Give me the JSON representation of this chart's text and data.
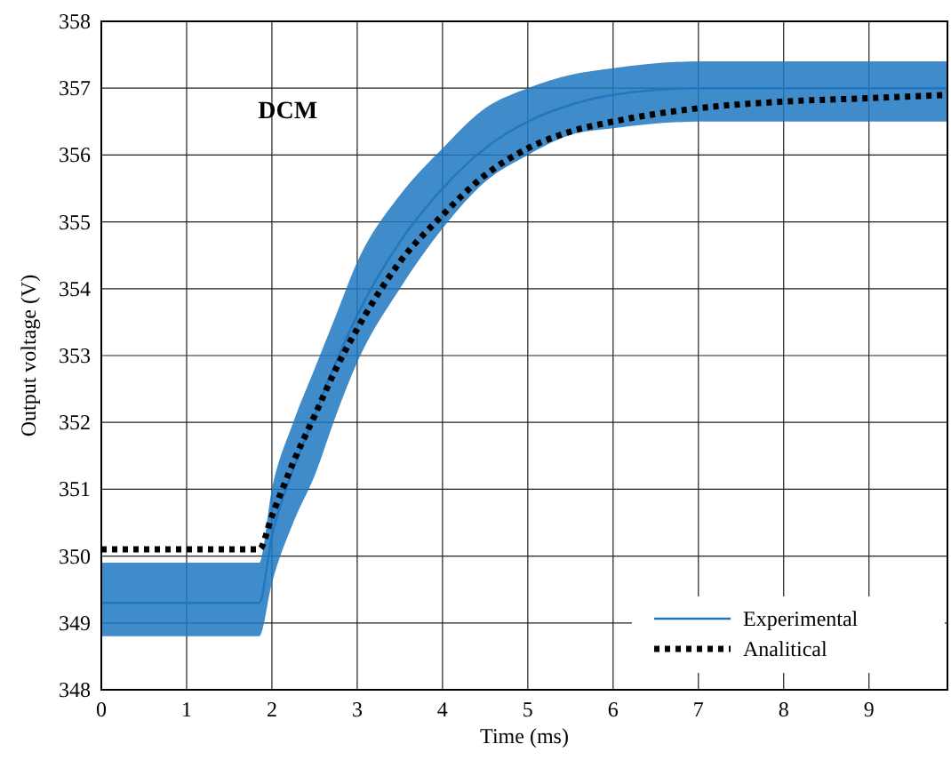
{
  "chart_data": {
    "type": "line",
    "xlabel": "Time (ms)",
    "ylabel": "Output voltage (V)",
    "annotations": [
      "DCM"
    ],
    "xlim": [
      0,
      9.92
    ],
    "xticks": [
      0,
      1,
      2,
      3,
      4,
      5,
      6,
      7,
      8,
      9
    ],
    "ylim": [
      348,
      358
    ],
    "yticks": [
      348,
      349,
      350,
      351,
      352,
      353,
      354,
      355,
      356,
      357,
      358
    ],
    "grid": true,
    "legend": "bottom right",
    "series": [
      {
        "name": "Experimental",
        "color": "#1f77c0",
        "line_style": "solid",
        "x": [
          0,
          0.5,
          1,
          1.5,
          1.85,
          2,
          2.25,
          2.5,
          2.75,
          3,
          3.5,
          4,
          4.5,
          5,
          5.5,
          6,
          7,
          8,
          9,
          9.92
        ],
        "values": [
          349.3,
          349.3,
          349.3,
          349.3,
          349.3,
          350.3,
          351.3,
          352.1,
          352.9,
          353.6,
          354.7,
          355.5,
          356.1,
          356.5,
          356.75,
          356.9,
          357,
          357,
          357,
          357
        ],
        "lower": [
          348.8,
          348.8,
          348.8,
          348.8,
          348.8,
          349.6,
          350.5,
          351.2,
          352.1,
          352.9,
          354,
          354.9,
          355.6,
          356,
          356.3,
          356.4,
          356.5,
          356.5,
          356.5,
          356.5
        ],
        "upper": [
          349.9,
          349.9,
          349.9,
          349.9,
          349.9,
          351,
          352,
          352.8,
          353.6,
          354.4,
          355.4,
          356.1,
          356.7,
          357,
          357.2,
          357.3,
          357.4,
          357.4,
          357.4,
          357.4
        ]
      },
      {
        "name": "Analitical",
        "color": "#000000",
        "line_style": "dotted",
        "x": [
          0,
          1,
          1.85,
          2,
          2.25,
          2.5,
          2.75,
          3,
          3.5,
          4,
          4.5,
          5,
          5.5,
          6,
          7,
          8,
          9,
          9.92
        ],
        "values": [
          350.1,
          350.1,
          350.1,
          350.6,
          351.4,
          352.1,
          352.8,
          353.4,
          354.4,
          355.1,
          355.7,
          356.1,
          356.35,
          356.5,
          356.7,
          356.8,
          356.85,
          356.9
        ]
      }
    ]
  }
}
